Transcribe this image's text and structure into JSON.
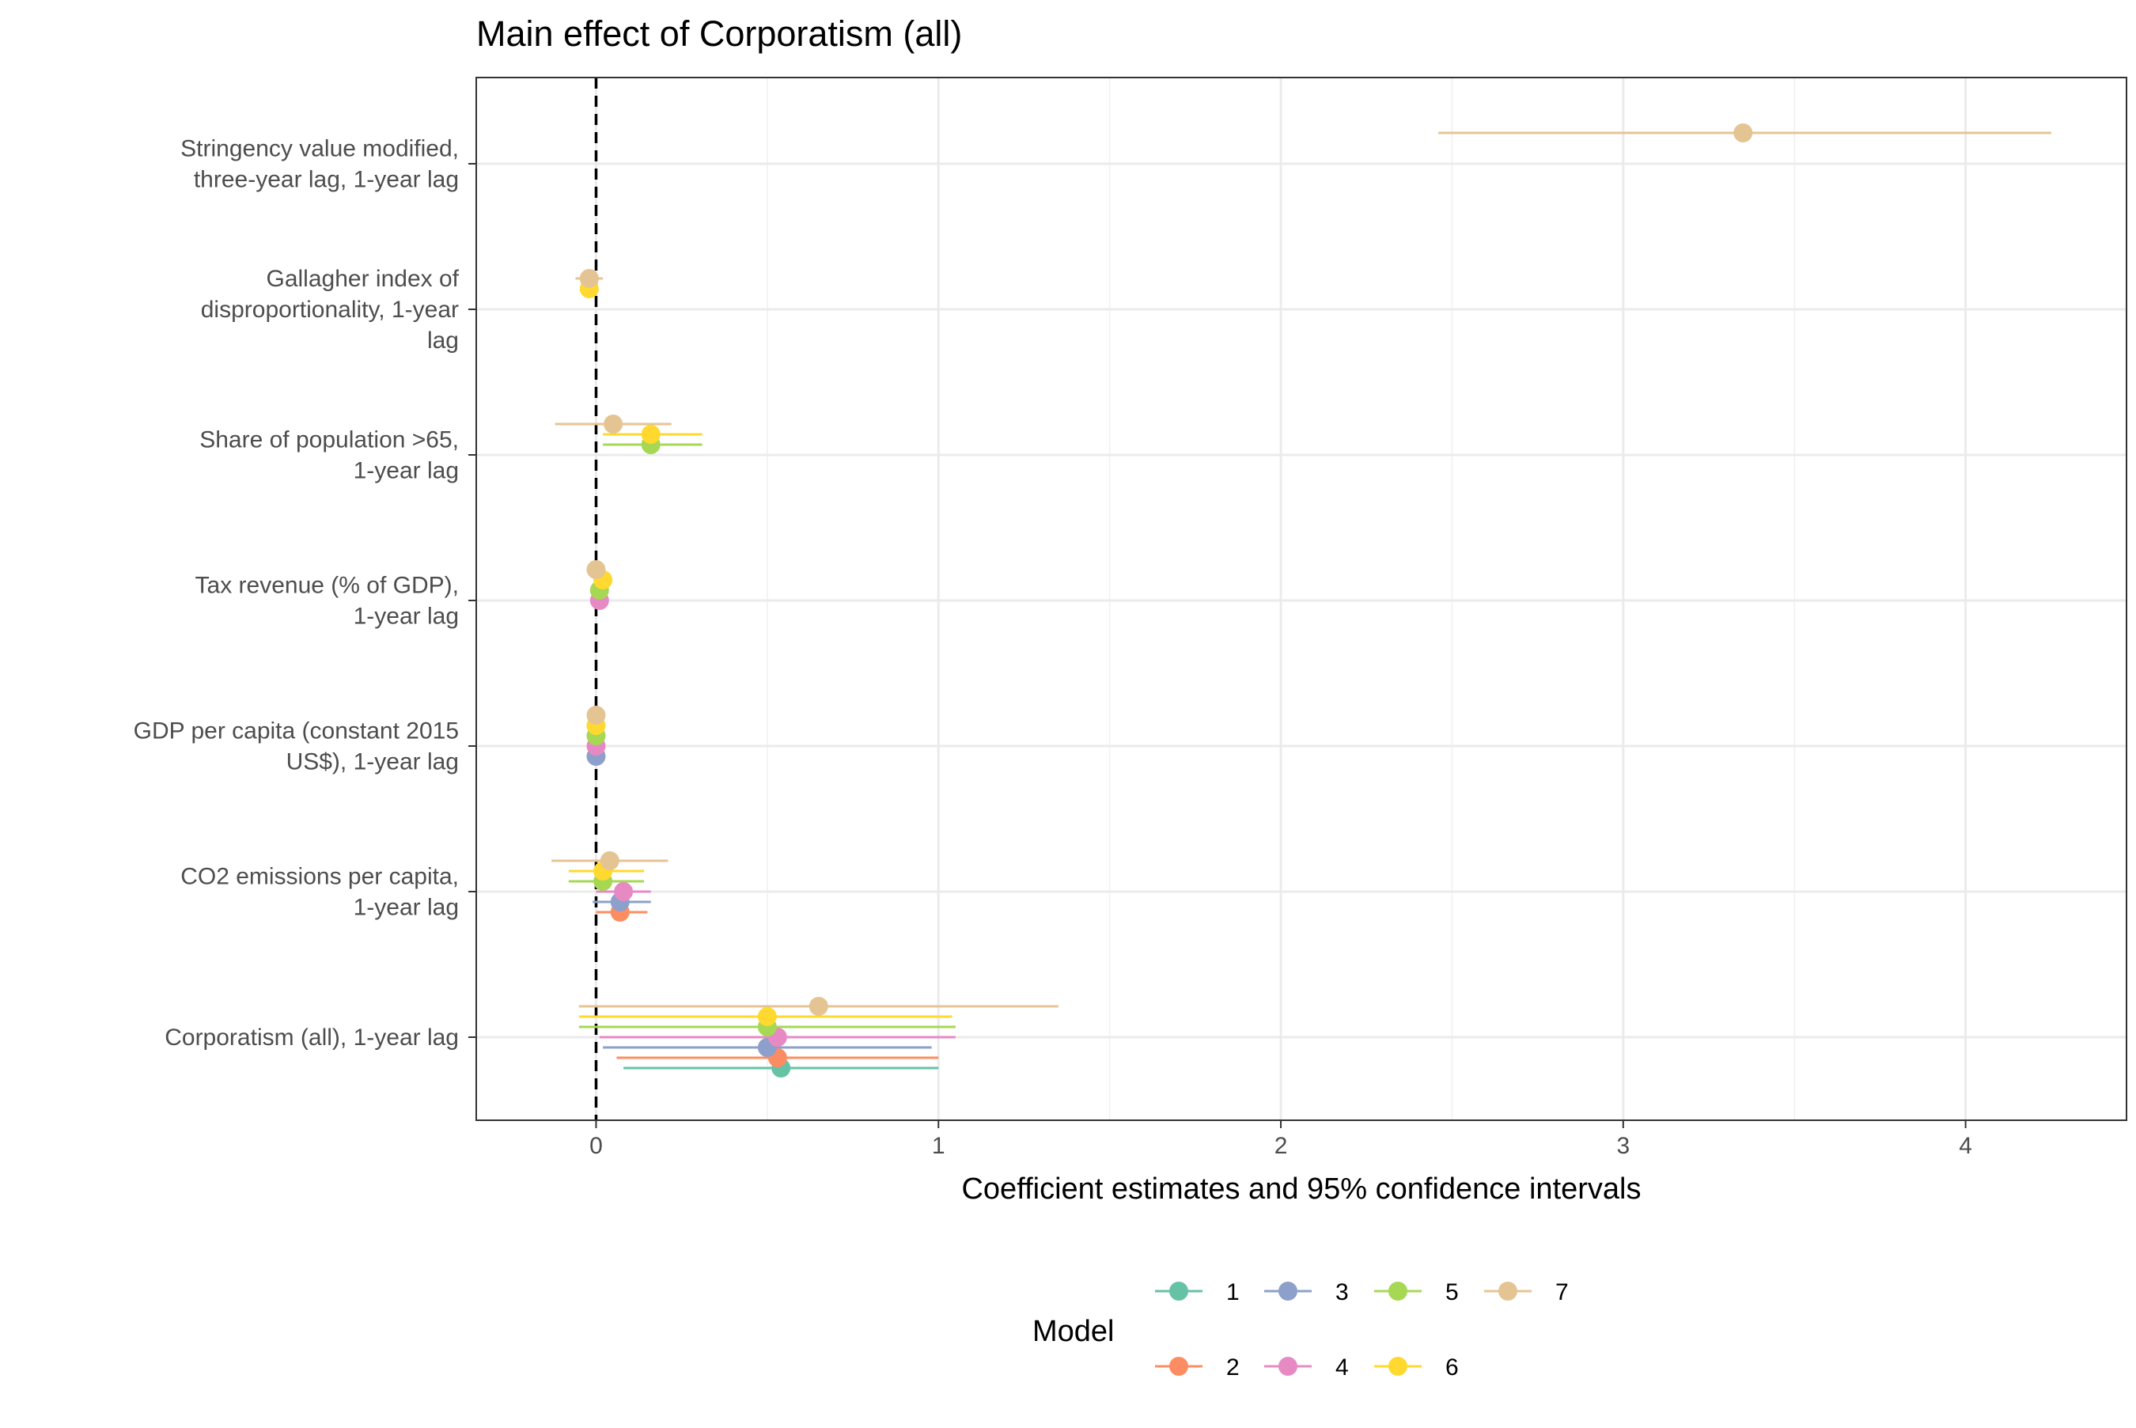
{
  "chart_data": {
    "type": "coefficient-plot",
    "title": "Main effect of Corporatism (all)",
    "xlabel": "Coefficient estimates and 95% confidence intervals",
    "xlim": [
      -0.35,
      4.47
    ],
    "x_ticks": [
      0,
      1,
      2,
      3,
      4
    ],
    "reference_line_x": 0,
    "grid": true,
    "legend": {
      "title": "Model",
      "position": "bottom",
      "entries": [
        "1",
        "2",
        "3",
        "4",
        "5",
        "6",
        "7"
      ]
    },
    "colors": {
      "1": "#66C2A5",
      "2": "#FC8D62",
      "3": "#8DA0CB",
      "4": "#E78AC3",
      "5": "#A6D854",
      "6": "#FFD92F",
      "7": "#E5C494"
    },
    "categories": [
      {
        "label": [
          "Corporatism (all), 1-year lag"
        ],
        "estimates": [
          {
            "model": "1",
            "est": 0.54,
            "lo": 0.08,
            "hi": 1.0
          },
          {
            "model": "2",
            "est": 0.53,
            "lo": 0.06,
            "hi": 1.0
          },
          {
            "model": "3",
            "est": 0.5,
            "lo": 0.02,
            "hi": 0.98
          },
          {
            "model": "4",
            "est": 0.53,
            "lo": 0.01,
            "hi": 1.05
          },
          {
            "model": "5",
            "est": 0.5,
            "lo": -0.05,
            "hi": 1.05
          },
          {
            "model": "6",
            "est": 0.5,
            "lo": -0.05,
            "hi": 1.04
          },
          {
            "model": "7",
            "est": 0.65,
            "lo": -0.05,
            "hi": 1.35
          }
        ]
      },
      {
        "label": [
          "CO2 emissions per capita,",
          "1-year lag"
        ],
        "estimates": [
          {
            "model": "2",
            "est": 0.07,
            "lo": 0.0,
            "hi": 0.15
          },
          {
            "model": "3",
            "est": 0.07,
            "lo": -0.01,
            "hi": 0.16
          },
          {
            "model": "4",
            "est": 0.08,
            "lo": 0.0,
            "hi": 0.16
          },
          {
            "model": "5",
            "est": 0.02,
            "lo": -0.08,
            "hi": 0.14
          },
          {
            "model": "6",
            "est": 0.02,
            "lo": -0.08,
            "hi": 0.14
          },
          {
            "model": "7",
            "est": 0.04,
            "lo": -0.13,
            "hi": 0.21
          }
        ]
      },
      {
        "label": [
          "GDP per capita (constant 2015",
          "US$), 1-year lag"
        ],
        "estimates": [
          {
            "model": "3",
            "est": 0.0,
            "lo": 0.0,
            "hi": 0.0
          },
          {
            "model": "4",
            "est": 0.0,
            "lo": 0.0,
            "hi": 0.0
          },
          {
            "model": "5",
            "est": 0.0,
            "lo": 0.0,
            "hi": 0.0
          },
          {
            "model": "6",
            "est": 0.0,
            "lo": 0.0,
            "hi": 0.0
          },
          {
            "model": "7",
            "est": 0.0,
            "lo": 0.0,
            "hi": 0.0
          }
        ]
      },
      {
        "label": [
          "Tax revenue (% of GDP),",
          "1-year lag"
        ],
        "estimates": [
          {
            "model": "4",
            "est": 0.01,
            "lo": 0.0,
            "hi": 0.02
          },
          {
            "model": "5",
            "est": 0.01,
            "lo": 0.0,
            "hi": 0.02
          },
          {
            "model": "6",
            "est": 0.02,
            "lo": 0.0,
            "hi": 0.03
          },
          {
            "model": "7",
            "est": 0.0,
            "lo": -0.01,
            "hi": 0.01
          }
        ]
      },
      {
        "label": [
          "Share of population >65,",
          "1-year lag"
        ],
        "estimates": [
          {
            "model": "5",
            "est": 0.16,
            "lo": 0.02,
            "hi": 0.31
          },
          {
            "model": "6",
            "est": 0.16,
            "lo": 0.02,
            "hi": 0.31
          },
          {
            "model": "7",
            "est": 0.05,
            "lo": -0.12,
            "hi": 0.22
          }
        ]
      },
      {
        "label": [
          "Gallagher index of",
          "disproportionality, 1-year",
          "lag"
        ],
        "estimates": [
          {
            "model": "6",
            "est": -0.02,
            "lo": -0.03,
            "hi": -0.01
          },
          {
            "model": "7",
            "est": -0.02,
            "lo": -0.06,
            "hi": 0.02
          }
        ]
      },
      {
        "label": [
          "Stringency value modified,",
          "three-year lag, 1-year lag"
        ],
        "estimates": [
          {
            "model": "7",
            "est": 3.35,
            "lo": 2.46,
            "hi": 4.25
          }
        ]
      }
    ]
  }
}
